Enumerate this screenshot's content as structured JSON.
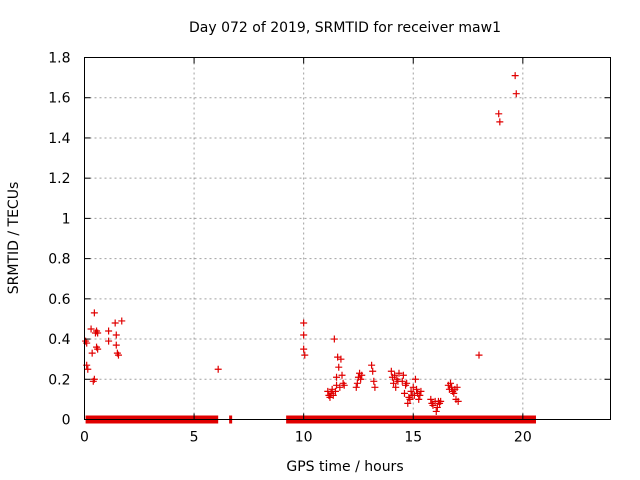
{
  "chart_data": {
    "type": "scatter",
    "title": "Day 072 of 2019, SRMTID for receiver maw1",
    "xlabel": "GPS time / hours",
    "ylabel": "SRMTID / TECUs",
    "xlim": [
      0,
      24
    ],
    "ylim": [
      0,
      1.8
    ],
    "xticks": [
      0,
      5,
      10,
      15,
      20
    ],
    "yticks": [
      0,
      0.2,
      0.4,
      0.6,
      0.8,
      1,
      1.2,
      1.4,
      1.6,
      1.8
    ],
    "ytick_labels": [
      "0",
      "0.2",
      "0.4",
      "0.6",
      "0.8",
      "1",
      "1.2",
      "1.4",
      "1.6",
      "1.8"
    ],
    "grid": true,
    "marker": "+",
    "color": "#e00000",
    "zero_bands": [
      [
        0.05,
        6.1
      ],
      [
        6.6,
        6.7
      ],
      [
        9.2,
        20.6
      ]
    ],
    "series": [
      {
        "name": "SRMTID",
        "points": [
          [
            0.05,
            0.39
          ],
          [
            0.1,
            0.38
          ],
          [
            0.1,
            0.27
          ],
          [
            0.15,
            0.25
          ],
          [
            0.3,
            0.45
          ],
          [
            0.35,
            0.33
          ],
          [
            0.4,
            0.19
          ],
          [
            0.45,
            0.2
          ],
          [
            0.45,
            0.53
          ],
          [
            0.5,
            0.43
          ],
          [
            0.55,
            0.36
          ],
          [
            0.55,
            0.44
          ],
          [
            0.6,
            0.35
          ],
          [
            0.6,
            0.43
          ],
          [
            1.1,
            0.44
          ],
          [
            1.1,
            0.39
          ],
          [
            1.4,
            0.48
          ],
          [
            1.45,
            0.42
          ],
          [
            1.45,
            0.37
          ],
          [
            1.5,
            0.33
          ],
          [
            1.55,
            0.32
          ],
          [
            1.7,
            0.49
          ],
          [
            6.1,
            0.25
          ],
          [
            10.0,
            0.48
          ],
          [
            10.0,
            0.42
          ],
          [
            10.0,
            0.35
          ],
          [
            10.05,
            0.32
          ],
          [
            11.1,
            0.14
          ],
          [
            11.15,
            0.12
          ],
          [
            11.2,
            0.11
          ],
          [
            11.25,
            0.13
          ],
          [
            11.3,
            0.15
          ],
          [
            11.35,
            0.12
          ],
          [
            11.4,
            0.4
          ],
          [
            11.45,
            0.14
          ],
          [
            11.5,
            0.17
          ],
          [
            11.5,
            0.21
          ],
          [
            11.55,
            0.31
          ],
          [
            11.6,
            0.26
          ],
          [
            11.65,
            0.16
          ],
          [
            11.7,
            0.3
          ],
          [
            11.75,
            0.22
          ],
          [
            11.8,
            0.18
          ],
          [
            11.85,
            0.17
          ],
          [
            12.4,
            0.16
          ],
          [
            12.45,
            0.18
          ],
          [
            12.5,
            0.21
          ],
          [
            12.55,
            0.23
          ],
          [
            12.6,
            0.2
          ],
          [
            12.65,
            0.22
          ],
          [
            13.1,
            0.27
          ],
          [
            13.15,
            0.24
          ],
          [
            13.2,
            0.19
          ],
          [
            13.25,
            0.16
          ],
          [
            14.0,
            0.24
          ],
          [
            14.05,
            0.21
          ],
          [
            14.1,
            0.18
          ],
          [
            14.15,
            0.22
          ],
          [
            14.2,
            0.16
          ],
          [
            14.25,
            0.2
          ],
          [
            14.3,
            0.19
          ],
          [
            14.35,
            0.23
          ],
          [
            14.5,
            0.19
          ],
          [
            14.55,
            0.22
          ],
          [
            14.6,
            0.13
          ],
          [
            14.65,
            0.17
          ],
          [
            14.7,
            0.18
          ],
          [
            14.75,
            0.08
          ],
          [
            14.8,
            0.11
          ],
          [
            14.85,
            0.1
          ],
          [
            14.9,
            0.14
          ],
          [
            14.95,
            0.12
          ],
          [
            15.0,
            0.16
          ],
          [
            15.05,
            0.12
          ],
          [
            15.1,
            0.2
          ],
          [
            15.15,
            0.15
          ],
          [
            15.2,
            0.13
          ],
          [
            15.25,
            0.1
          ],
          [
            15.3,
            0.12
          ],
          [
            15.35,
            0.14
          ],
          [
            15.8,
            0.1
          ],
          [
            15.85,
            0.08
          ],
          [
            15.9,
            0.07
          ],
          [
            16.0,
            0.09
          ],
          [
            16.05,
            0.04
          ],
          [
            16.1,
            0.06
          ],
          [
            16.15,
            0.09
          ],
          [
            16.2,
            0.08
          ],
          [
            16.25,
            0.09
          ],
          [
            16.6,
            0.17
          ],
          [
            16.65,
            0.15
          ],
          [
            16.7,
            0.18
          ],
          [
            16.75,
            0.16
          ],
          [
            16.8,
            0.14
          ],
          [
            16.85,
            0.13
          ],
          [
            16.9,
            0.15
          ],
          [
            16.95,
            0.1
          ],
          [
            17.0,
            0.16
          ],
          [
            17.05,
            0.09
          ],
          [
            18.0,
            0.32
          ],
          [
            18.9,
            1.52
          ],
          [
            18.95,
            1.48
          ],
          [
            19.65,
            1.71
          ],
          [
            19.7,
            1.62
          ]
        ]
      }
    ]
  }
}
